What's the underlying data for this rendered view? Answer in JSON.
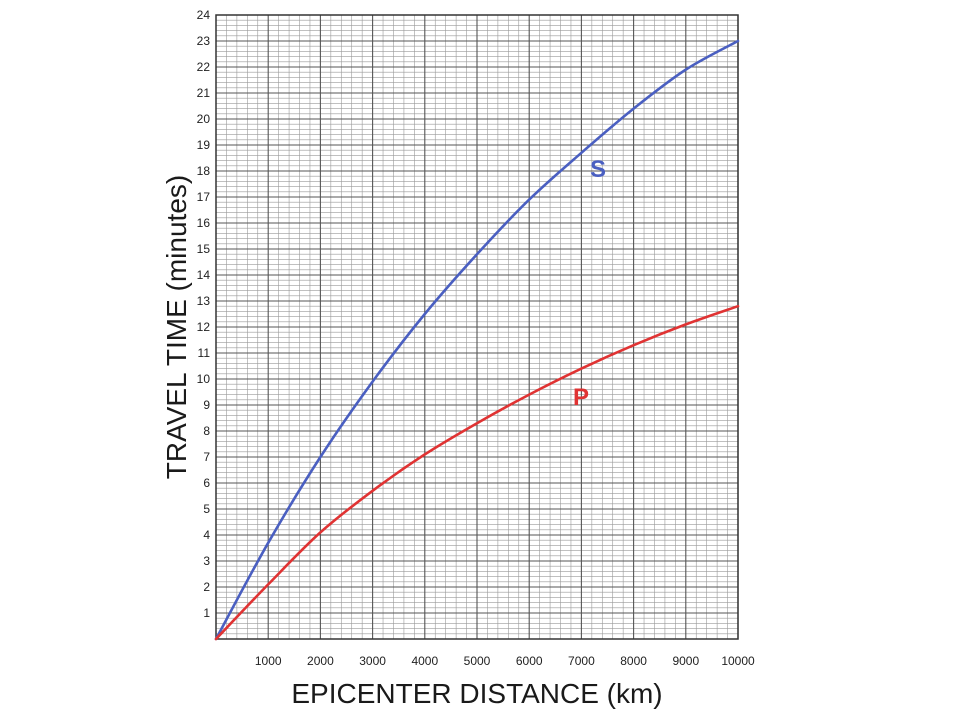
{
  "chart_data": {
    "type": "line",
    "xlabel": "EPICENTER DISTANCE (km)",
    "ylabel": "TRAVEL TIME (minutes)",
    "xlim": [
      0,
      10000
    ],
    "ylim": [
      0,
      24
    ],
    "xticks": [
      1000,
      2000,
      3000,
      4000,
      5000,
      6000,
      7000,
      8000,
      9000,
      10000
    ],
    "yticks": [
      1,
      2,
      3,
      4,
      5,
      6,
      7,
      8,
      9,
      10,
      11,
      12,
      13,
      14,
      15,
      16,
      17,
      18,
      19,
      20,
      21,
      22,
      23,
      24
    ],
    "grid": true,
    "x": [
      0,
      1000,
      2000,
      3000,
      4000,
      5000,
      6000,
      7000,
      8000,
      9000,
      10000
    ],
    "series": [
      {
        "name": "S",
        "color": "#4a5fc1",
        "values": [
          0,
          3.7,
          7.0,
          9.9,
          12.5,
          14.8,
          16.9,
          18.7,
          20.4,
          21.9,
          23.0
        ]
      },
      {
        "name": "P",
        "color": "#e03333",
        "values": [
          0,
          2.1,
          4.1,
          5.7,
          7.1,
          8.3,
          9.4,
          10.4,
          11.3,
          12.1,
          12.8
        ]
      }
    ]
  }
}
